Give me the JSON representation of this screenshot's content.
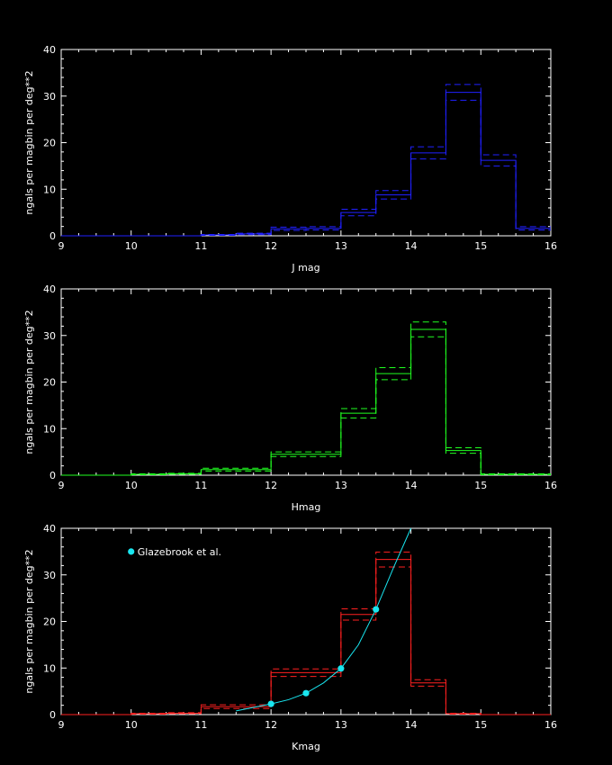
{
  "chart_data": [
    {
      "type": "line",
      "style": "step histogram with error bands",
      "xlabel": "J mag",
      "ylabel": "ngals per magbin per deg**2",
      "xlim": [
        9,
        16
      ],
      "ylim": [
        0,
        40
      ],
      "xticks": [
        9,
        10,
        11,
        12,
        13,
        14,
        15,
        16
      ],
      "yticks": [
        0,
        10,
        20,
        30,
        40
      ],
      "color": "#2020ff",
      "bin_edges": [
        9.0,
        9.5,
        10.0,
        10.5,
        11.0,
        11.5,
        12.0,
        12.5,
        13.0,
        13.5,
        14.0,
        14.5,
        15.0,
        15.5,
        16.0
      ],
      "values": [
        0.0,
        0.0,
        0.0,
        0.0,
        0.2,
        0.4,
        1.5,
        1.6,
        5.0,
        8.8,
        17.8,
        30.8,
        16.2,
        1.6
      ],
      "error": [
        0.0,
        0.0,
        0.0,
        0.0,
        0.1,
        0.15,
        0.35,
        0.35,
        0.7,
        0.9,
        1.3,
        1.7,
        1.2,
        0.35
      ]
    },
    {
      "type": "line",
      "style": "step histogram with error bands",
      "xlabel": "Hmag",
      "ylabel": "ngals per magbin per deg**2",
      "xlim": [
        9,
        16
      ],
      "ylim": [
        0,
        40
      ],
      "xticks": [
        9,
        10,
        11,
        12,
        13,
        14,
        15,
        16
      ],
      "yticks": [
        0,
        10,
        20,
        30,
        40
      ],
      "color": "#20ff20",
      "bin_edges": [
        9.0,
        9.5,
        10.0,
        10.5,
        11.0,
        11.5,
        12.0,
        12.5,
        13.0,
        13.5,
        14.0,
        14.5,
        15.0,
        15.5,
        16.0
      ],
      "values": [
        0.0,
        0.0,
        0.2,
        0.3,
        1.2,
        1.2,
        4.5,
        4.5,
        13.3,
        21.8,
        31.3,
        5.3,
        0.2,
        0.2
      ],
      "error": [
        0.0,
        0.0,
        0.1,
        0.1,
        0.3,
        0.3,
        0.5,
        0.5,
        1.0,
        1.3,
        1.6,
        0.6,
        0.1,
        0.1
      ]
    },
    {
      "type": "line",
      "style": "step histogram with error bands and overlaid model curve",
      "xlabel": "Kmag",
      "ylabel": "ngals per magbin per deg**2",
      "xlim": [
        9,
        16
      ],
      "ylim": [
        0,
        40
      ],
      "xticks": [
        9,
        10,
        11,
        12,
        13,
        14,
        15,
        16
      ],
      "yticks": [
        0,
        10,
        20,
        30,
        40
      ],
      "color": "#ff2020",
      "bin_edges": [
        9.0,
        9.5,
        10.0,
        10.5,
        11.0,
        11.5,
        12.0,
        12.5,
        13.0,
        13.5,
        14.0,
        14.5,
        15.0,
        15.5,
        16.0
      ],
      "values": [
        0.0,
        0.0,
        0.2,
        0.3,
        1.7,
        1.7,
        9.0,
        9.0,
        21.5,
        33.3,
        6.8,
        0.2,
        0.0,
        0.0
      ],
      "error": [
        0.0,
        0.0,
        0.1,
        0.1,
        0.4,
        0.4,
        0.8,
        0.8,
        1.2,
        1.6,
        0.7,
        0.1,
        0.0,
        0.0
      ],
      "overlay": {
        "name": "Glazebrook et al.",
        "color": "#19e6f0",
        "points": [
          [
            12.0,
            2.3
          ],
          [
            12.5,
            4.6
          ],
          [
            13.0,
            9.9
          ],
          [
            13.5,
            22.6
          ]
        ],
        "curve": [
          [
            11.5,
            0.8
          ],
          [
            12.0,
            2.3
          ],
          [
            12.25,
            3.2
          ],
          [
            12.5,
            4.6
          ],
          [
            12.75,
            6.8
          ],
          [
            13.0,
            9.9
          ],
          [
            13.25,
            15.0
          ],
          [
            13.5,
            22.6
          ],
          [
            13.75,
            31.5
          ],
          [
            14.0,
            40.0
          ]
        ],
        "legend_position": "top-left"
      }
    }
  ]
}
